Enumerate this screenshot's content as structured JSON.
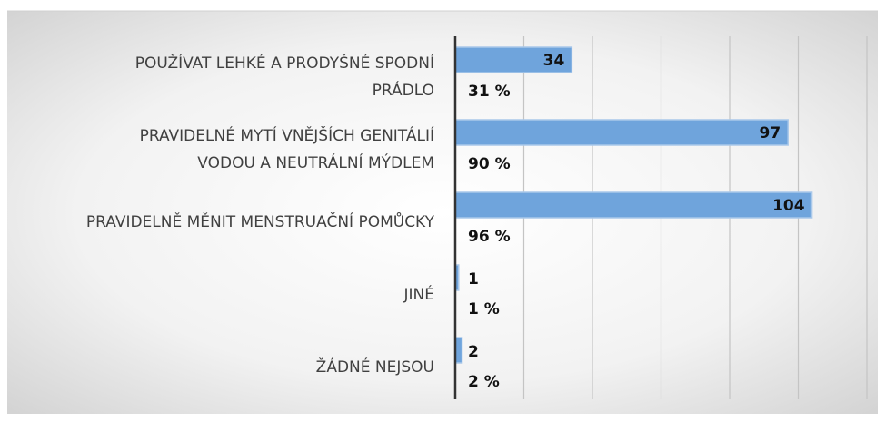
{
  "chart_data": {
    "type": "hbar",
    "categories": [
      "POUŽÍVAT LEHKÉ A PRODYŠNÉ SPODNÍ\nPRÁDLO",
      "PRAVIDELNÉ MYTÍ VNĚJŠÍCH GENITÁLIÍ\nVODOU A NEUTRÁLNÍ MÝDLEM",
      "PRAVIDELNĚ MĚNIT MENSTRUAČNÍ POMŮCKY",
      "JINÉ",
      "ŽÁDNÉ NEJSOU"
    ],
    "values": [
      34,
      97,
      104,
      1,
      2
    ],
    "percent_labels": [
      "31 %",
      "90 %",
      "96 %",
      "1 %",
      "2 %"
    ],
    "color": "#6fa4dc",
    "xlim": [
      0,
      120
    ],
    "xticks": [
      0,
      20,
      40,
      60,
      80,
      100,
      120
    ],
    "grid": true
  }
}
